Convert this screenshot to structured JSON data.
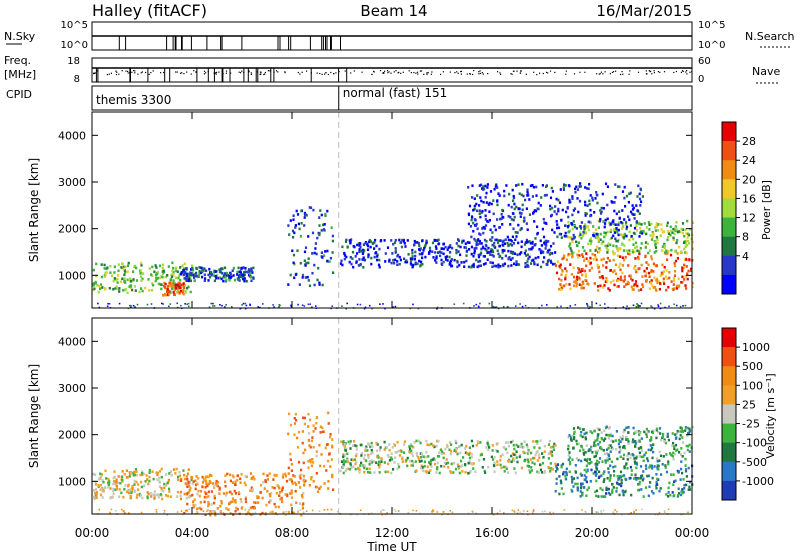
{
  "header": {
    "station": "Halley (fitACF)",
    "beam": "Beam 14",
    "date": "16/Mar/2015"
  },
  "strips": {
    "nsky_label": "N.Sky",
    "nsky_ticks": [
      "10^5",
      "10^0"
    ],
    "nsearch_label": "N.Search",
    "nsearch_ticks": [
      "10^5",
      "10^0"
    ],
    "freq_label": "Freq.",
    "freq_unit": "[MHz]",
    "freq_ticks": [
      "18",
      "8"
    ],
    "nave_label": "Nave",
    "nave_ticks": [
      "60",
      "0"
    ],
    "cpid_label": "CPID",
    "cpid_segments": [
      {
        "name": "themis 3300",
        "start_hour": 0.0,
        "end_hour": 9.87
      },
      {
        "name": "normal (fast) 151",
        "start_hour": 9.87,
        "end_hour": 24.0
      }
    ]
  },
  "chart_data": [
    {
      "type": "heatmap",
      "name": "power",
      "xlabel": "",
      "ylabel": "Slant Range [km]",
      "xlim": [
        0,
        24
      ],
      "ylim": [
        300,
        4500
      ],
      "yticks": [
        "1000",
        "2000",
        "3000",
        "4000"
      ],
      "colorbar_label": "Power [dB]",
      "colorbar_ticks": [
        "28",
        "24",
        "20",
        "16",
        "12",
        "8",
        "4"
      ],
      "colorbar_colors": [
        "#0000ff",
        "#2838c8",
        "#1e7840",
        "#3cb43c",
        "#a0dc3c",
        "#f0c828",
        "#f08c14",
        "#f05014",
        "#e60000"
      ],
      "features": [
        {
          "t0": 0.0,
          "t1": 4.0,
          "r_lo": 650,
          "r_hi": 1300,
          "level": 0.42
        },
        {
          "t0": 2.8,
          "t1": 3.7,
          "r_lo": 600,
          "r_hi": 900,
          "level": 0.85
        },
        {
          "t0": 3.5,
          "t1": 6.5,
          "r_lo": 900,
          "r_hi": 1200,
          "level": 0.2
        },
        {
          "t0": 7.8,
          "t1": 9.6,
          "r_lo": 800,
          "r_hi": 2500,
          "level": 0.18
        },
        {
          "t0": 9.9,
          "t1": 18.5,
          "r_lo": 1200,
          "r_hi": 1800,
          "level": 0.12
        },
        {
          "t0": 18.5,
          "t1": 24.0,
          "r_lo": 700,
          "r_hi": 1500,
          "level": 0.78
        },
        {
          "t0": 19.0,
          "t1": 24.0,
          "r_lo": 1500,
          "r_hi": 2200,
          "level": 0.45
        },
        {
          "t0": 15.0,
          "t1": 22.0,
          "r_lo": 1800,
          "r_hi": 3000,
          "level": 0.1
        }
      ]
    },
    {
      "type": "heatmap",
      "name": "velocity",
      "xlabel": "Time UT",
      "ylabel": "Slant Range [km]",
      "xlim": [
        0,
        24
      ],
      "ylim": [
        300,
        4500
      ],
      "yticks": [
        "1000",
        "2000",
        "3000",
        "4000"
      ],
      "xticks": [
        "00:00",
        "04:00",
        "08:00",
        "12:00",
        "16:00",
        "20:00",
        "00:00"
      ],
      "colorbar_label": "Velocity [m s⁻¹]",
      "colorbar_ticks": [
        "1000",
        "500",
        "100",
        "25",
        "-25",
        "-100",
        "-500",
        "-1000"
      ],
      "colorbar_colors": [
        "#1e3cb4",
        "#2878c8",
        "#1e7840",
        "#3cb43c",
        "#c8c8c0",
        "#f0a028",
        "#f08c14",
        "#f05014",
        "#e60000"
      ],
      "features": [
        {
          "t0": 0.0,
          "t1": 4.0,
          "r_lo": 650,
          "r_hi": 1300,
          "level": 0.55
        },
        {
          "t0": 3.5,
          "t1": 8.5,
          "r_lo": 300,
          "r_hi": 1200,
          "level": 0.7
        },
        {
          "t0": 7.8,
          "t1": 9.6,
          "r_lo": 800,
          "r_hi": 2500,
          "level": 0.7
        },
        {
          "t0": 9.9,
          "t1": 18.5,
          "r_lo": 1200,
          "r_hi": 1900,
          "level": 0.45
        },
        {
          "t0": 18.5,
          "t1": 24.0,
          "r_lo": 700,
          "r_hi": 1500,
          "level": 0.25
        },
        {
          "t0": 19.0,
          "t1": 24.0,
          "r_lo": 1500,
          "r_hi": 2200,
          "level": 0.35
        }
      ]
    }
  ]
}
